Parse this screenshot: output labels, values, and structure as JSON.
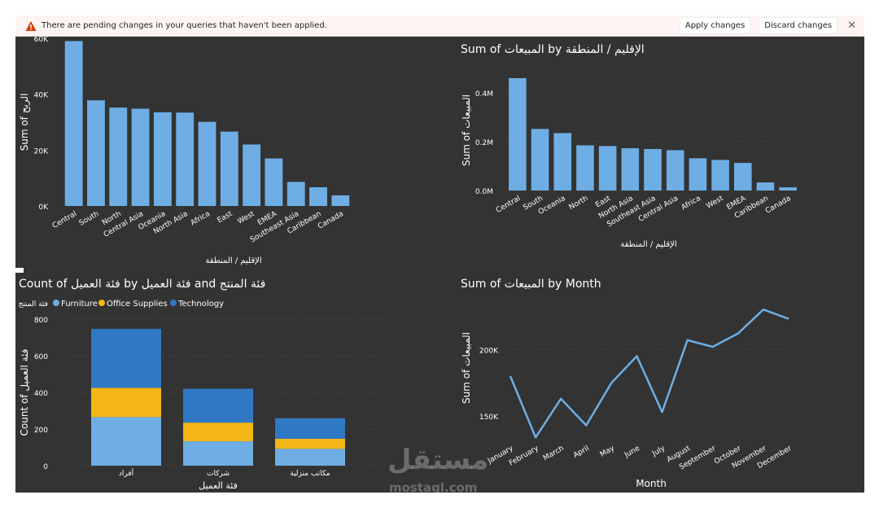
{
  "notification": {
    "message": "There are pending changes in your queries that haven't been applied.",
    "apply_label": "Apply changes",
    "discard_label": "Discard changes",
    "close_glyph": "✕",
    "icon": "warning-icon",
    "icon_color": "#d83b01"
  },
  "colors": {
    "background": "#333333",
    "bar": "#6eaee4",
    "furniture": "#6eaee4",
    "office_supplies": "#f4b617",
    "technology": "#2f78c4",
    "line": "#6eaee4",
    "text": "#ffffff",
    "grid": "#4a4a4a"
  },
  "watermark": {
    "main": "مستقل",
    "sub": "mostaql.com"
  },
  "chart_data": [
    {
      "id": "profit-by-region",
      "type": "bar",
      "title": "",
      "xlabel": "الإقليم / المنطقة",
      "ylabel": "Sum of الربح",
      "categories": [
        "Central",
        "South",
        "North",
        "Central Asia",
        "Oceania",
        "North Asia",
        "Africa",
        "East",
        "West",
        "EMEA",
        "Southeast Asia",
        "Caribbean",
        "Canada"
      ],
      "values": [
        59000,
        37800,
        35200,
        34800,
        33500,
        33400,
        30100,
        26600,
        22000,
        17000,
        8600,
        6700,
        3800
      ],
      "yticks": [
        "0K",
        "20K",
        "40K",
        "60K"
      ],
      "ylim": [
        0,
        60000
      ],
      "grid": false
    },
    {
      "id": "sales-by-region",
      "type": "bar",
      "title": "Sum of المبيعات by الإقليم / المنطقة",
      "xlabel": "الإقليم / المنطقة",
      "ylabel": "Sum of المبيعات",
      "categories": [
        "Central",
        "South",
        "Oceania",
        "North",
        "East",
        "North Asia",
        "Southeast Asia",
        "Central Asia",
        "Africa",
        "West",
        "EMEA",
        "Caribbean",
        "Canada"
      ],
      "values": [
        460000,
        252000,
        235000,
        185000,
        182000,
        173000,
        170000,
        165000,
        132000,
        125000,
        113000,
        33000,
        13000
      ],
      "yticks": [
        "0.0M",
        "0.2M",
        "0.4M"
      ],
      "ylim": [
        0,
        480000
      ],
      "grid": true
    },
    {
      "id": "count-by-segment",
      "type": "bar",
      "stacked": true,
      "title": "Count of فئة العميل by فئة العميل and فئة المنتج",
      "xlabel": "فئة العميل",
      "ylabel": "Count of فئة العميل",
      "legend_title": "فئة المنتج",
      "legend_position": "top-left",
      "categories": [
        "أفراد",
        "شركات",
        "مكاتب منزلية"
      ],
      "series": [
        {
          "name": "Furniture",
          "values": [
            265,
            133,
            92
          ]
        },
        {
          "name": "Office Supplies",
          "values": [
            160,
            102,
            55
          ]
        },
        {
          "name": "Technology",
          "values": [
            322,
            185,
            112
          ]
        }
      ],
      "yticks": [
        "0",
        "200",
        "400",
        "600",
        "800"
      ],
      "ylim": [
        0,
        800
      ],
      "grid": true
    },
    {
      "id": "sales-by-month",
      "type": "line",
      "title": "Sum of المبيعات by Month",
      "xlabel": "Month",
      "ylabel": "Sum of المبيعات",
      "categories": [
        "January",
        "February",
        "March",
        "April",
        "May",
        "June",
        "July",
        "August",
        "September",
        "October",
        "November",
        "December"
      ],
      "values": [
        180000,
        134000,
        163000,
        143000,
        175000,
        195000,
        153000,
        207000,
        202000,
        212000,
        230000,
        223000
      ],
      "yticks": [
        "150K",
        "200K"
      ],
      "ytick_values": [
        150000,
        200000
      ],
      "ylim": [
        125000,
        235000
      ],
      "grid": true
    }
  ]
}
